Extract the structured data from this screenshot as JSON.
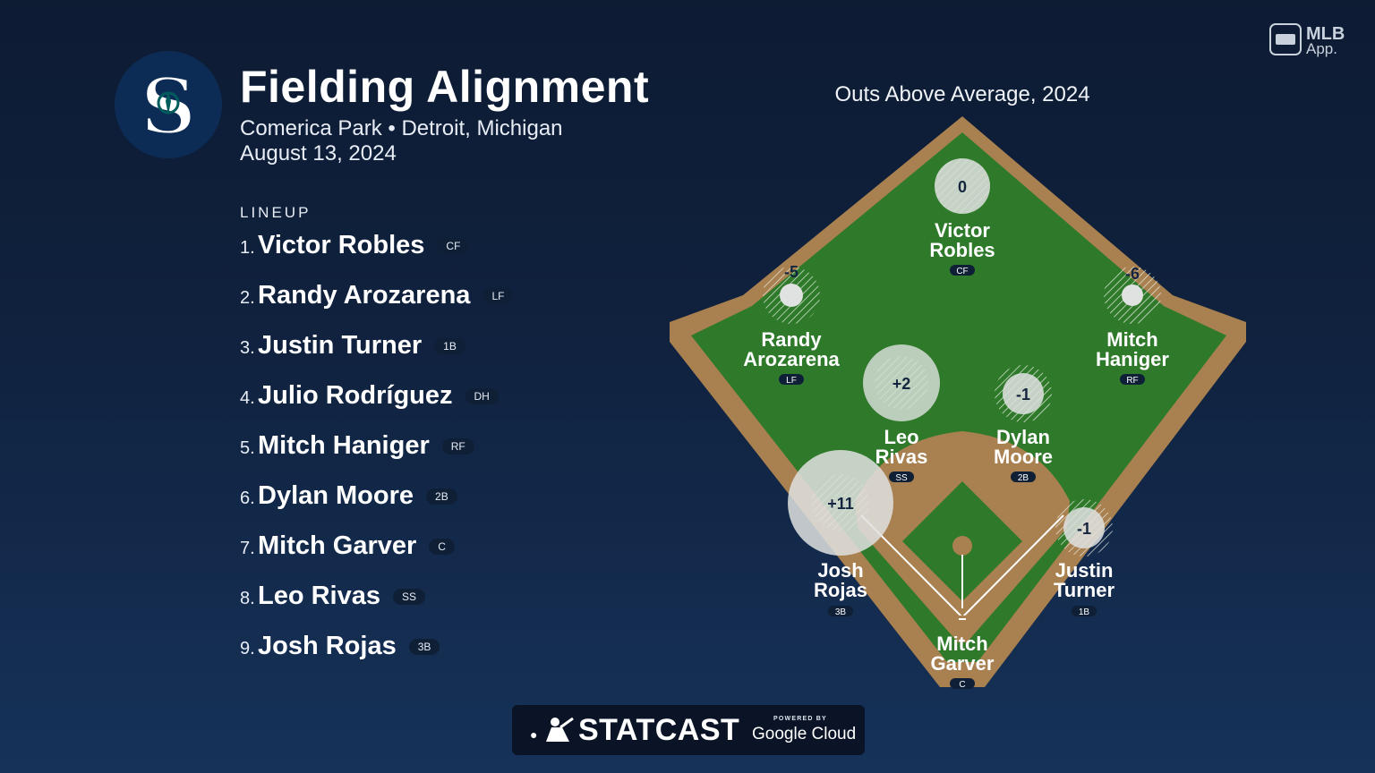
{
  "header": {
    "title": "Fielding Alignment",
    "venue": "Comerica Park • Detroit, Michigan",
    "date": "August 13, 2024"
  },
  "team_logo": {
    "glyph": "S",
    "name": "seattle-mariners-logo",
    "color": "#0c2c56",
    "accent": "#005c5c"
  },
  "lineup": {
    "header": "LINEUP",
    "items": [
      {
        "num": "1.",
        "name": "Victor Robles",
        "pos": "CF"
      },
      {
        "num": "2.",
        "name": "Randy Arozarena",
        "pos": "LF"
      },
      {
        "num": "3.",
        "name": "Justin Turner",
        "pos": "1B"
      },
      {
        "num": "4.",
        "name": "Julio Rodríguez",
        "pos": "DH"
      },
      {
        "num": "5.",
        "name": "Mitch Haniger",
        "pos": "RF"
      },
      {
        "num": "6.",
        "name": "Dylan Moore",
        "pos": "2B"
      },
      {
        "num": "7.",
        "name": "Mitch Garver",
        "pos": "C"
      },
      {
        "num": "8.",
        "name": "Leo Rivas",
        "pos": "SS"
      },
      {
        "num": "9.",
        "name": "Josh Rojas",
        "pos": "3B"
      }
    ]
  },
  "field": {
    "title": "Outs Above Average, 2024",
    "colors": {
      "grass": "#2f7a2a",
      "dirt": "#a9804f",
      "positive": "#dfe2e0"
    },
    "fielders": [
      {
        "first": "Victor",
        "last": "Robles",
        "pos": "CF",
        "oaa": "0"
      },
      {
        "first": "Randy",
        "last": "Arozarena",
        "pos": "LF",
        "oaa": "-5"
      },
      {
        "first": "Mitch",
        "last": "Haniger",
        "pos": "RF",
        "oaa": "-6"
      },
      {
        "first": "Leo",
        "last": "Rivas",
        "pos": "SS",
        "oaa": "+2"
      },
      {
        "first": "Dylan",
        "last": "Moore",
        "pos": "2B",
        "oaa": "-1"
      },
      {
        "first": "Josh",
        "last": "Rojas",
        "pos": "3B",
        "oaa": "+11"
      },
      {
        "first": "Justin",
        "last": "Turner",
        "pos": "1B",
        "oaa": "-1"
      },
      {
        "first": "Mitch",
        "last": "Garver",
        "pos": "C",
        "oaa": ""
      }
    ]
  },
  "branding": {
    "mlb_app": "MLB App.",
    "mlb_app_line1": "MLB",
    "mlb_app_line2": "App.",
    "statcast": "STATCAST",
    "powered_by": "POWERED BY",
    "google_cloud": "Google Cloud"
  }
}
